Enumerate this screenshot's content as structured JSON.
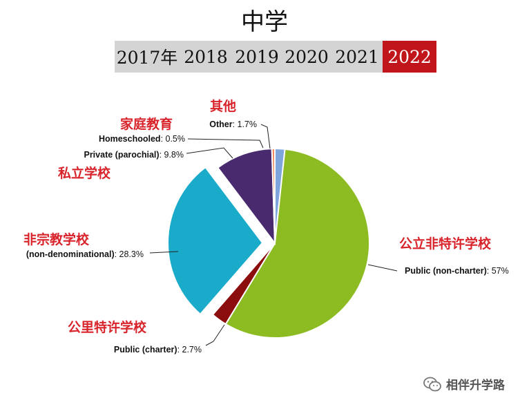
{
  "title": "中学",
  "years": [
    {
      "label": "2017年",
      "active": false
    },
    {
      "label": "2018",
      "active": false
    },
    {
      "label": "2019",
      "active": false
    },
    {
      "label": "2020",
      "active": false
    },
    {
      "label": "2021",
      "active": false
    },
    {
      "label": "2022",
      "active": true
    }
  ],
  "chart_data": {
    "type": "pie",
    "title": "",
    "slices": [
      {
        "category": "Other",
        "value": 1.7,
        "value_label": "1.7%",
        "cn": "其他",
        "color": "#7fa6dc"
      },
      {
        "category": "Public (non-charter)",
        "value": 57,
        "value_label": "57%",
        "cn": "公立非特许学校",
        "color": "#8cbc22"
      },
      {
        "category": "Public (charter)",
        "value": 2.7,
        "value_label": "2.7%",
        "cn": "公里特许学校",
        "color": "#8b0d0d"
      },
      {
        "category": "(non-denominational)",
        "value": 28.3,
        "value_label": "28.3%",
        "cn": "非宗教学校",
        "color": "#1aabcb"
      },
      {
        "category": "Private (parochial)",
        "value": 9.8,
        "value_label": "9.8%",
        "cn": "私立学校",
        "color": "#4a2a6e"
      },
      {
        "category": "Homeschooled",
        "value": 0.5,
        "value_label": "0.5%",
        "cn": "家庭教育",
        "color": "#f08a5d"
      }
    ]
  },
  "watermark": {
    "text": "相伴升学路",
    "icon": "wechat-icon"
  }
}
